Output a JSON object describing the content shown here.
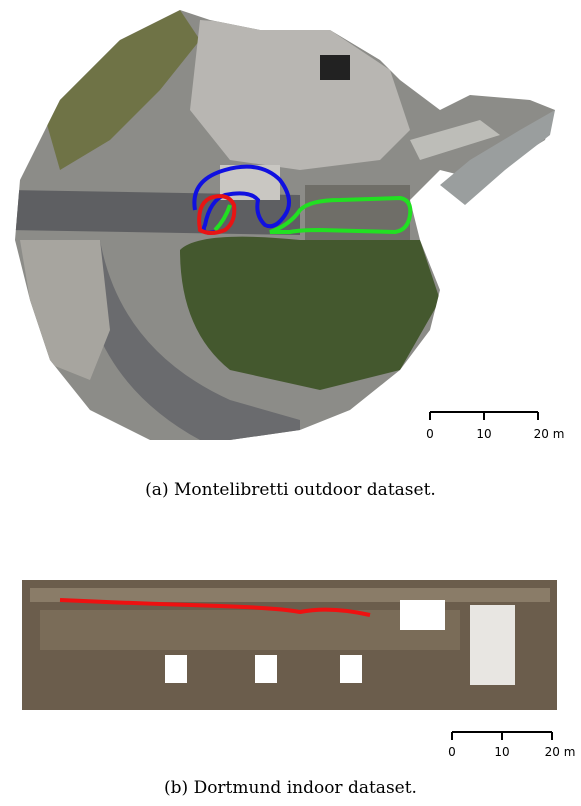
{
  "panels": [
    {
      "caption": "(a) Montelibretti outdoor dataset.",
      "scale_bar": {
        "ticks": [
          "0",
          "10",
          "20 m"
        ]
      },
      "trajectories": [
        {
          "color": "#1010e0"
        },
        {
          "color": "#22e022"
        },
        {
          "color": "#e81414"
        }
      ]
    },
    {
      "caption": "(b) Dortmund indoor dataset.",
      "scale_bar": {
        "ticks": [
          "0",
          "10",
          "20 m"
        ]
      },
      "trajectories": [
        {
          "color": "#ee1111"
        }
      ]
    }
  ]
}
